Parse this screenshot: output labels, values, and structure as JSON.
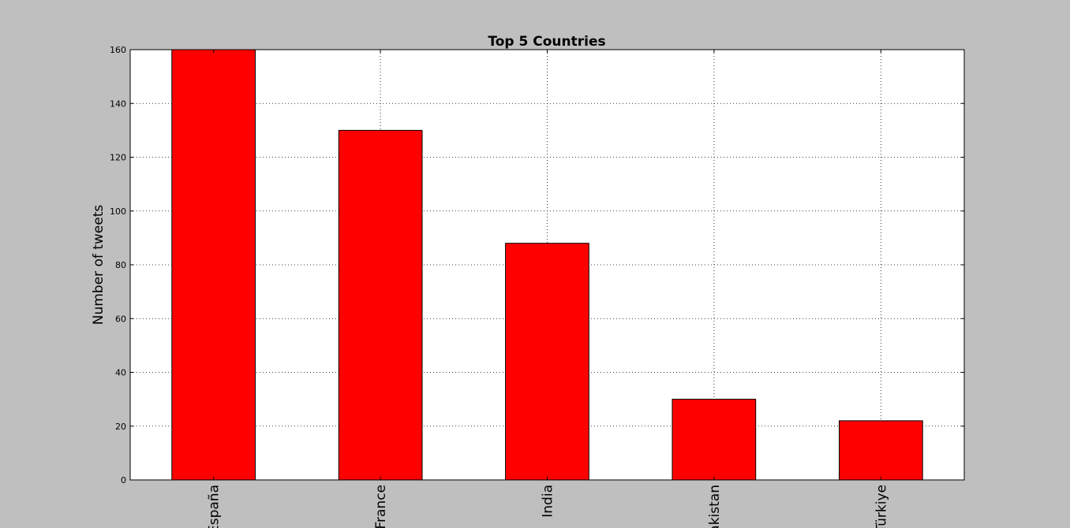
{
  "chart_data": {
    "type": "bar",
    "title": "Top 5 Countries",
    "xlabel": "",
    "ylabel": "Number of tweets",
    "categories": [
      "España",
      "France",
      "India",
      "Pakistan",
      "Türkiye"
    ],
    "values": [
      160,
      130,
      88,
      30,
      22
    ],
    "ylim": [
      0,
      160
    ],
    "yticks": [
      "0",
      "20",
      "40",
      "60",
      "80",
      "100",
      "120",
      "140",
      "160"
    ],
    "grid": true,
    "legend": "none",
    "bar_color": "#ff0000",
    "background_color": "#bfbfbf",
    "plot_background_color": "#ffffff"
  }
}
